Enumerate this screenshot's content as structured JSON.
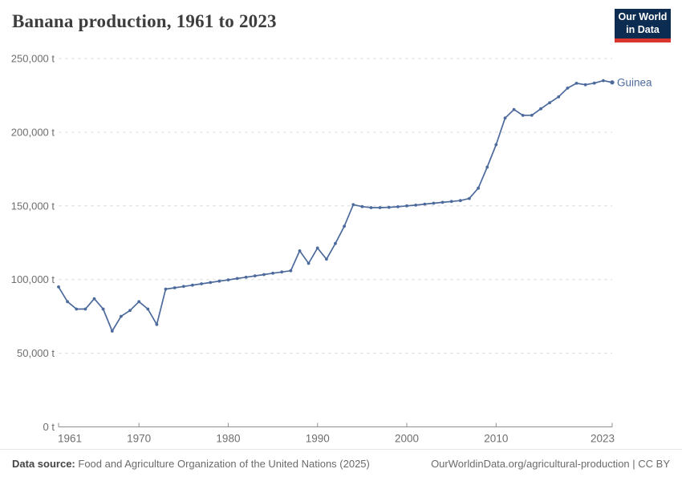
{
  "header": {
    "title": "Banana production, 1961 to 2023",
    "logo": {
      "line1": "Our World",
      "line2": "in Data"
    }
  },
  "chart_data": {
    "type": "line",
    "title": "Banana production, 1961 to 2023",
    "xlabel": "",
    "ylabel": "",
    "unit": "t",
    "grid": "horizontal-dashed",
    "legend_position": "end-of-line-label",
    "xlim": [
      1961,
      2023
    ],
    "ylim": [
      0,
      250000
    ],
    "x_ticks": [
      1961,
      1970,
      1980,
      1990,
      2000,
      2010,
      2023
    ],
    "y_ticks": [
      0,
      50000,
      100000,
      150000,
      200000,
      250000
    ],
    "y_tick_labels": [
      "0 t",
      "50,000 t",
      "100,000 t",
      "150,000 t",
      "200,000 t",
      "250,000 t"
    ],
    "series": [
      {
        "name": "Guinea",
        "color": "#4c6a9c",
        "x": [
          1961,
          1962,
          1963,
          1964,
          1965,
          1966,
          1967,
          1968,
          1969,
          1970,
          1971,
          1972,
          1973,
          1974,
          1975,
          1976,
          1977,
          1978,
          1979,
          1980,
          1981,
          1982,
          1983,
          1984,
          1985,
          1986,
          1987,
          1988,
          1989,
          1990,
          1991,
          1992,
          1993,
          1994,
          1995,
          1996,
          1997,
          1998,
          1999,
          2000,
          2001,
          2002,
          2003,
          2004,
          2005,
          2006,
          2007,
          2008,
          2009,
          2010,
          2011,
          2012,
          2013,
          2014,
          2015,
          2016,
          2017,
          2018,
          2019,
          2020,
          2021,
          2022,
          2023
        ],
        "values": [
          95000,
          85000,
          80000,
          80000,
          87000,
          80000,
          65000,
          75000,
          79000,
          85000,
          80000,
          69500,
          93500,
          94400,
          95300,
          96200,
          97100,
          98000,
          98900,
          99800,
          100700,
          101600,
          102500,
          103400,
          104300,
          105100,
          106000,
          119500,
          111000,
          121400,
          113800,
          124500,
          136200,
          150800,
          149500,
          148800,
          148800,
          149000,
          149400,
          150000,
          150500,
          151200,
          151800,
          152400,
          153000,
          153600,
          155000,
          162000,
          176300,
          191500,
          209600,
          215400,
          211400,
          211500,
          215900,
          220000,
          224000,
          229900,
          233200,
          232200,
          233300,
          235000,
          233800
        ]
      }
    ]
  },
  "footer": {
    "source_label": "Data source:",
    "source_text": "Food and Agriculture Organization of the United Nations (2025)",
    "link_text": "OurWorldinData.org/agricultural-production | CC BY"
  },
  "colors": {
    "line": "#4c6a9c",
    "gridline": "#dedede",
    "axis": "#8f8f8f",
    "tick_label": "#6e6e6e",
    "title": "#3d3d3d",
    "logo_bg": "#0c2c52",
    "logo_accent": "#d8352c"
  }
}
